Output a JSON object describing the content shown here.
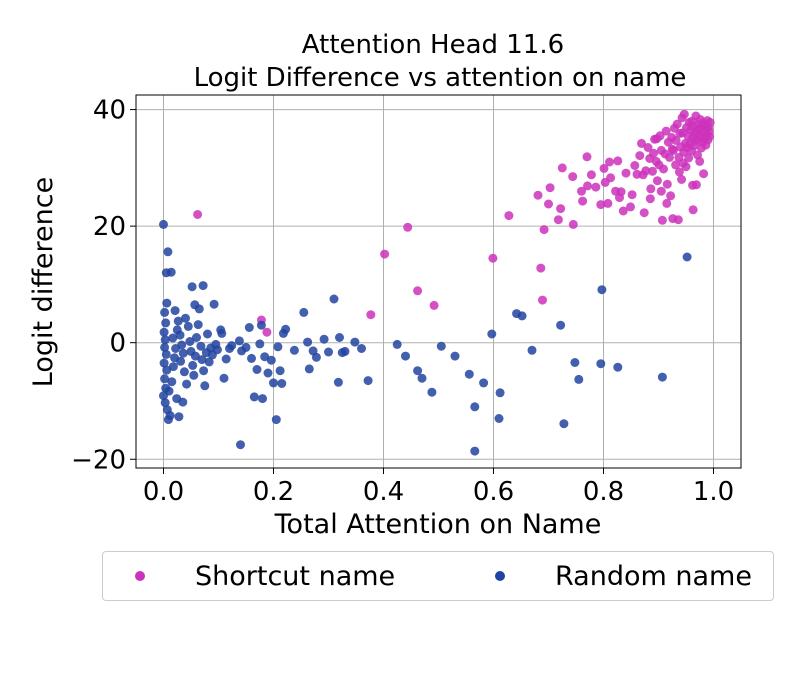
{
  "chart_data": {
    "type": "scatter",
    "title": "Attention Head 11.6",
    "subtitle": "Logit Difference vs attention on name",
    "xlabel": "Total Attention on Name",
    "ylabel": "Logit difference",
    "xlim": [
      -0.05,
      1.05
    ],
    "ylim": [
      -21.5,
      42.5
    ],
    "xticks": [
      0.0,
      0.2,
      0.4,
      0.6,
      0.8,
      1.0
    ],
    "xtick_labels": [
      "0.0",
      "0.2",
      "0.4",
      "0.6",
      "0.8",
      "1.0"
    ],
    "yticks": [
      -20,
      0,
      20,
      40
    ],
    "ytick_labels": [
      "−20",
      "0",
      "20",
      "40"
    ],
    "grid": true,
    "legend_placement": "below-center",
    "series": [
      {
        "name": "Shortcut name",
        "color": "#cc33bb",
        "points": [
          [
            0.062,
            22.0
          ],
          [
            0.178,
            3.9
          ],
          [
            0.188,
            1.8
          ],
          [
            0.377,
            4.8
          ],
          [
            0.402,
            15.2
          ],
          [
            0.444,
            19.8
          ],
          [
            0.462,
            8.9
          ],
          [
            0.492,
            6.4
          ],
          [
            0.599,
            14.5
          ],
          [
            0.628,
            21.8
          ],
          [
            0.686,
            12.8
          ],
          [
            0.689,
            7.3
          ],
          [
            0.692,
            19.4
          ],
          [
            0.7,
            23.8
          ],
          [
            0.703,
            26.6
          ],
          [
            0.681,
            25.3
          ],
          [
            0.718,
            21.1
          ],
          [
            0.725,
            30.0
          ],
          [
            0.722,
            23.0
          ],
          [
            0.745,
            20.3
          ],
          [
            0.744,
            28.5
          ],
          [
            0.76,
            26.0
          ],
          [
            0.762,
            24.3
          ],
          [
            0.771,
            26.9
          ],
          [
            0.77,
            31.9
          ],
          [
            0.778,
            28.8
          ],
          [
            0.786,
            26.7
          ],
          [
            0.795,
            23.7
          ],
          [
            0.801,
            29.9
          ],
          [
            0.803,
            27.5
          ],
          [
            0.808,
            23.9
          ],
          [
            0.811,
            31.0
          ],
          [
            0.813,
            28.3
          ],
          [
            0.822,
            26.0
          ],
          [
            0.826,
            31.2
          ],
          [
            0.829,
            24.9
          ],
          [
            0.832,
            25.9
          ],
          [
            0.836,
            22.6
          ],
          [
            0.841,
            29.1
          ],
          [
            0.849,
            23.3
          ],
          [
            0.852,
            25.4
          ],
          [
            0.857,
            30.4
          ],
          [
            0.861,
            28.9
          ],
          [
            0.866,
            32.1
          ],
          [
            0.869,
            34.2
          ],
          [
            0.872,
            28.8
          ],
          [
            0.874,
            22.3
          ],
          [
            0.877,
            29.5
          ],
          [
            0.881,
            33.5
          ],
          [
            0.884,
            31.6
          ],
          [
            0.886,
            26.4
          ],
          [
            0.889,
            29.4
          ],
          [
            0.891,
            32.5
          ],
          [
            0.893,
            34.9
          ],
          [
            0.896,
            31.1
          ],
          [
            0.898,
            27.8
          ],
          [
            0.901,
            30.5
          ],
          [
            0.903,
            35.5
          ],
          [
            0.905,
            33.0
          ],
          [
            0.907,
            21.0
          ],
          [
            0.909,
            29.8
          ],
          [
            0.912,
            32.4
          ],
          [
            0.914,
            36.3
          ],
          [
            0.916,
            27.2
          ],
          [
            0.918,
            34.4
          ],
          [
            0.92,
            31.8
          ],
          [
            0.922,
            25.2
          ],
          [
            0.924,
            35.2
          ],
          [
            0.926,
            21.3
          ],
          [
            0.927,
            33.0
          ],
          [
            0.929,
            36.8
          ],
          [
            0.931,
            30.5
          ],
          [
            0.932,
            34.7
          ],
          [
            0.934,
            37.5
          ],
          [
            0.936,
            21.1
          ],
          [
            0.937,
            31.8
          ],
          [
            0.939,
            35.9
          ],
          [
            0.94,
            33.6
          ],
          [
            0.942,
            28.0
          ],
          [
            0.943,
            38.6
          ],
          [
            0.944,
            36.0
          ],
          [
            0.946,
            32.7
          ],
          [
            0.947,
            39.2
          ],
          [
            0.949,
            34.2
          ],
          [
            0.95,
            30.2
          ],
          [
            0.951,
            36.9
          ],
          [
            0.952,
            33.5
          ],
          [
            0.954,
            35.4
          ],
          [
            0.955,
            31.7
          ],
          [
            0.956,
            37.8
          ],
          [
            0.957,
            34.1
          ],
          [
            0.959,
            36.5
          ],
          [
            0.96,
            32.9
          ],
          [
            0.961,
            38.0
          ],
          [
            0.962,
            35.1
          ],
          [
            0.963,
            22.8
          ],
          [
            0.964,
            37.1
          ],
          [
            0.965,
            33.8
          ],
          [
            0.966,
            36.1
          ],
          [
            0.967,
            34.6
          ],
          [
            0.968,
            38.9
          ],
          [
            0.969,
            27.1
          ],
          [
            0.97,
            35.8
          ],
          [
            0.971,
            32.2
          ],
          [
            0.972,
            37.4
          ],
          [
            0.973,
            34.9
          ],
          [
            0.974,
            36.6
          ],
          [
            0.975,
            31.1
          ],
          [
            0.976,
            38.3
          ],
          [
            0.977,
            35.3
          ],
          [
            0.978,
            33.4
          ],
          [
            0.979,
            36.9
          ],
          [
            0.98,
            34.4
          ],
          [
            0.981,
            37.7
          ],
          [
            0.982,
            29.0
          ],
          [
            0.983,
            36.2
          ],
          [
            0.984,
            35.0
          ],
          [
            0.985,
            37.3
          ],
          [
            0.986,
            33.9
          ],
          [
            0.987,
            36.7
          ],
          [
            0.988,
            35.6
          ],
          [
            0.989,
            38.1
          ],
          [
            0.99,
            34.8
          ],
          [
            0.991,
            37.0
          ],
          [
            0.992,
            36.3
          ],
          [
            0.993,
            35.4
          ],
          [
            0.994,
            37.8
          ],
          [
            0.915,
            23.9
          ],
          [
            0.885,
            24.7
          ],
          [
            0.905,
            26.0
          ],
          [
            0.962,
            27.0
          ],
          [
            0.945,
            30.8
          ],
          [
            0.925,
            33.2
          ],
          [
            0.897,
            35.0
          ],
          [
            0.938,
            29.3
          ]
        ]
      },
      {
        "name": "Random name",
        "color": "#2244a0",
        "points": [
          [
            0.0,
            20.3
          ],
          [
            0.005,
            12.0
          ],
          [
            0.008,
            15.6
          ],
          [
            0.014,
            12.1
          ],
          [
            0.002,
            5.2
          ],
          [
            0.004,
            3.4
          ],
          [
            0.006,
            6.8
          ],
          [
            0.001,
            1.8
          ],
          [
            0.003,
            0.5
          ],
          [
            0.002,
            -0.8
          ],
          [
            0.005,
            -2.0
          ],
          [
            0.001,
            -3.5
          ],
          [
            0.006,
            -4.7
          ],
          [
            0.002,
            -6.2
          ],
          [
            0.004,
            -7.8
          ],
          [
            0.0,
            -9.1
          ],
          [
            0.003,
            -10.3
          ],
          [
            0.007,
            -11.5
          ],
          [
            0.009,
            -13.2
          ],
          [
            0.012,
            -12.5
          ],
          [
            0.01,
            -8.3
          ],
          [
            0.015,
            -6.7
          ],
          [
            0.018,
            -4.1
          ],
          [
            0.02,
            -2.6
          ],
          [
            0.022,
            -1.0
          ],
          [
            0.017,
            0.8
          ],
          [
            0.025,
            2.2
          ],
          [
            0.027,
            3.7
          ],
          [
            0.021,
            5.5
          ],
          [
            0.03,
            1.3
          ],
          [
            0.033,
            -0.4
          ],
          [
            0.036,
            -1.8
          ],
          [
            0.031,
            -3.2
          ],
          [
            0.038,
            -5.0
          ],
          [
            0.042,
            -7.1
          ],
          [
            0.024,
            -9.6
          ],
          [
            0.028,
            -12.7
          ],
          [
            0.035,
            -10.2
          ],
          [
            0.04,
            4.2
          ],
          [
            0.045,
            2.8
          ],
          [
            0.048,
            0.2
          ],
          [
            0.05,
            -1.5
          ],
          [
            0.053,
            -3.9
          ],
          [
            0.055,
            -5.6
          ],
          [
            0.058,
            -2.3
          ],
          [
            0.06,
            0.9
          ],
          [
            0.063,
            3.1
          ],
          [
            0.057,
            6.5
          ],
          [
            0.052,
            9.6
          ],
          [
            0.072,
            9.8
          ],
          [
            0.065,
            5.8
          ],
          [
            0.068,
            -0.6
          ],
          [
            0.07,
            -2.9
          ],
          [
            0.073,
            -4.8
          ],
          [
            0.075,
            -7.4
          ],
          [
            0.078,
            -1.7
          ],
          [
            0.08,
            1.5
          ],
          [
            0.083,
            -3.3
          ],
          [
            0.086,
            -0.9
          ],
          [
            0.089,
            -2.1
          ],
          [
            0.092,
            6.6
          ],
          [
            0.095,
            -0.3
          ],
          [
            0.098,
            -1.2
          ],
          [
            0.104,
            2.2
          ],
          [
            0.106,
            1.6
          ],
          [
            0.11,
            -6.1
          ],
          [
            0.114,
            -2.8
          ],
          [
            0.12,
            -1.0
          ],
          [
            0.124,
            -0.5
          ],
          [
            0.14,
            -17.5
          ],
          [
            0.138,
            0.3
          ],
          [
            0.142,
            -1.4
          ],
          [
            0.15,
            -0.8
          ],
          [
            0.156,
            2.6
          ],
          [
            0.16,
            -2.7
          ],
          [
            0.165,
            -9.3
          ],
          [
            0.17,
            -4.6
          ],
          [
            0.175,
            -0.2
          ],
          [
            0.178,
            3.0
          ],
          [
            0.18,
            -9.6
          ],
          [
            0.184,
            -2.4
          ],
          [
            0.19,
            -5.2
          ],
          [
            0.196,
            -3.0
          ],
          [
            0.2,
            -6.9
          ],
          [
            0.205,
            -13.2
          ],
          [
            0.208,
            -0.7
          ],
          [
            0.212,
            -4.8
          ],
          [
            0.215,
            -7.0
          ],
          [
            0.218,
            1.6
          ],
          [
            0.222,
            2.3
          ],
          [
            0.238,
            -1.3
          ],
          [
            0.255,
            5.2
          ],
          [
            0.262,
            0.1
          ],
          [
            0.265,
            -4.5
          ],
          [
            0.272,
            -1.4
          ],
          [
            0.278,
            -2.5
          ],
          [
            0.292,
            0.6
          ],
          [
            0.3,
            -1.6
          ],
          [
            0.31,
            7.5
          ],
          [
            0.318,
            -6.8
          ],
          [
            0.32,
            0.9
          ],
          [
            0.325,
            -1.7
          ],
          [
            0.33,
            -1.5
          ],
          [
            0.348,
            0.1
          ],
          [
            0.36,
            -1.0
          ],
          [
            0.372,
            -6.5
          ],
          [
            0.425,
            -0.3
          ],
          [
            0.44,
            -2.3
          ],
          [
            0.462,
            -4.8
          ],
          [
            0.47,
            -6.1
          ],
          [
            0.488,
            -8.5
          ],
          [
            0.505,
            -0.6
          ],
          [
            0.53,
            -2.3
          ],
          [
            0.556,
            -5.4
          ],
          [
            0.566,
            -11.0
          ],
          [
            0.566,
            -18.6
          ],
          [
            0.582,
            -6.9
          ],
          [
            0.597,
            1.5
          ],
          [
            0.61,
            -13.0
          ],
          [
            0.612,
            -8.6
          ],
          [
            0.642,
            5.0
          ],
          [
            0.652,
            4.6
          ],
          [
            0.67,
            -1.3
          ],
          [
            0.722,
            3.0
          ],
          [
            0.728,
            -13.9
          ],
          [
            0.748,
            -3.4
          ],
          [
            0.755,
            -6.3
          ],
          [
            0.795,
            -3.6
          ],
          [
            0.797,
            9.1
          ],
          [
            0.826,
            -4.2
          ],
          [
            0.907,
            -5.9
          ],
          [
            0.952,
            14.7
          ]
        ]
      }
    ]
  }
}
